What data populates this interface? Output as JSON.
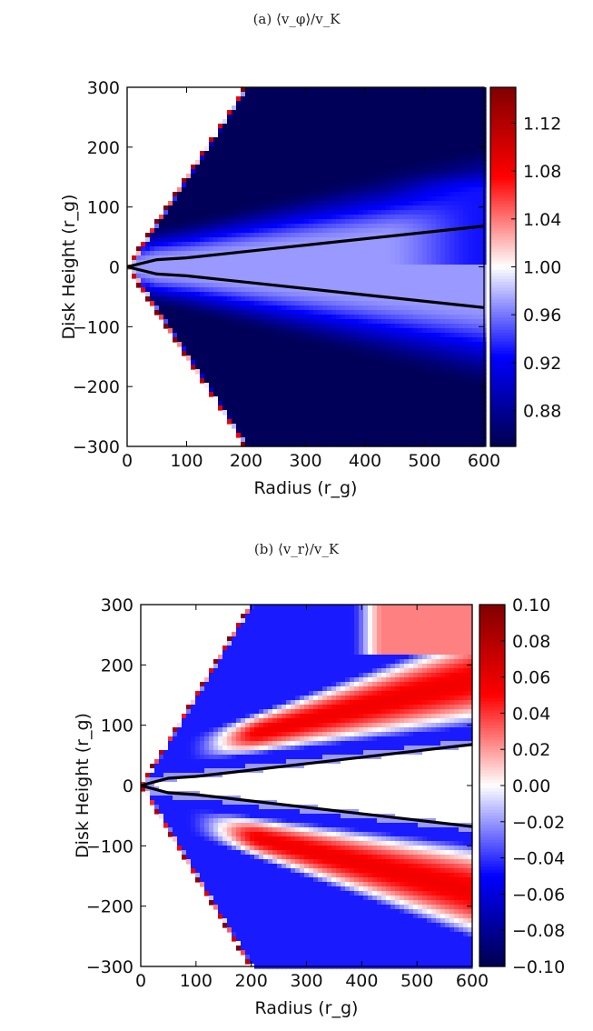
{
  "panels": [
    {
      "caption": "(a) ⟨v_φ⟩/v_K",
      "chart_data": {
        "type": "heatmap",
        "title": "",
        "xlabel": "Radius (r_g)",
        "ylabel": "Disk Height (r_g)",
        "xlim": [
          0,
          600
        ],
        "ylim": [
          -300,
          300
        ],
        "xticks": [
          0,
          100,
          200,
          300,
          400,
          500,
          600
        ],
        "yticks": [
          -300,
          -200,
          -100,
          0,
          100,
          200,
          300
        ],
        "colorbar": {
          "cmap": "seismic",
          "range": [
            0.85,
            1.15
          ],
          "ticks": [
            0.88,
            0.92,
            0.96,
            1.0,
            1.04,
            1.08,
            1.12
          ],
          "tick_labels": [
            "0.88",
            "0.92",
            "0.96",
            "1.00",
            "1.04",
            "1.08",
            "1.12"
          ]
        },
        "field": {
          "inner_value": 0.97,
          "outer_value": 0.855,
          "wedge_edge_value": 1.14,
          "upper_right_bright_value": 0.93
        },
        "disk_boundary": {
          "upper": [
            [
              0,
              0
            ],
            [
              50,
              12
            ],
            [
              100,
              15
            ],
            [
              600,
              68
            ]
          ],
          "lower": [
            [
              0,
              0
            ],
            [
              50,
              -12
            ],
            [
              100,
              -15
            ],
            [
              600,
              -68
            ]
          ]
        },
        "wedge_slope_x_per_y": 0.66
      }
    },
    {
      "caption": "(b) ⟨v_r⟩/v_K",
      "chart_data": {
        "type": "heatmap",
        "title": "",
        "xlabel": "Radius (r_g)",
        "ylabel": "Disk Height (r_g)",
        "xlim": [
          0,
          600
        ],
        "ylim": [
          -300,
          300
        ],
        "xticks": [
          0,
          100,
          200,
          300,
          400,
          500,
          600
        ],
        "yticks": [
          -300,
          -200,
          -100,
          0,
          100,
          200,
          300
        ],
        "colorbar": {
          "cmap": "seismic",
          "range": [
            -0.1,
            0.1
          ],
          "ticks": [
            -0.1,
            -0.08,
            -0.06,
            -0.04,
            -0.02,
            0.0,
            0.02,
            0.04,
            0.06,
            0.08,
            0.1
          ],
          "tick_labels": [
            "-0.10",
            "-0.08",
            "-0.06",
            "-0.04",
            "-0.02",
            "0.00",
            "0.02",
            "0.04",
            "0.06",
            "0.08",
            "0.10"
          ]
        },
        "field": {
          "disk_value": 0.0,
          "inflow_band_value": 0.055,
          "outer_value": -0.045
        },
        "disk_boundary": {
          "upper": [
            [
              0,
              0
            ],
            [
              50,
              12
            ],
            [
              100,
              15
            ],
            [
              600,
              68
            ]
          ],
          "lower": [
            [
              0,
              0
            ],
            [
              50,
              -12
            ],
            [
              100,
              -15
            ],
            [
              600,
              -68
            ]
          ]
        },
        "wedge_slope_x_per_y": 0.66
      }
    }
  ]
}
